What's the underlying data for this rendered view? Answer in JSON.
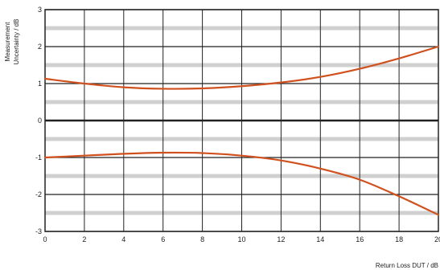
{
  "chart_data": {
    "type": "line",
    "title": "",
    "xlabel": "Return Loss DUT / dB",
    "ylabel_lines": [
      "Measurement",
      "Uncertainty / dB"
    ],
    "xlim": [
      0,
      20
    ],
    "ylim": [
      -3,
      3
    ],
    "x_ticks": [
      0,
      2,
      4,
      6,
      8,
      10,
      12,
      14,
      16,
      18,
      20
    ],
    "y_ticks": [
      3,
      2,
      1,
      0,
      -1,
      -2,
      -3
    ],
    "y_tick_labels": [
      "3",
      "2",
      "1",
      "0",
      "-1",
      "-2",
      "-3"
    ],
    "grid": true,
    "legend": "none",
    "colors": {
      "curve": "#d0501e",
      "grid": "#888888",
      "band": "#aaaaaa",
      "axis": "#222222"
    },
    "series": [
      {
        "x": [
          0,
          2,
          4,
          6,
          8,
          10,
          12,
          14,
          16,
          18,
          20
        ],
        "y": [
          1.13,
          1.0,
          0.9,
          0.86,
          0.87,
          0.93,
          1.03,
          1.18,
          1.4,
          1.68,
          2.0
        ]
      },
      {
        "x": [
          0,
          2,
          4,
          6,
          8,
          10,
          12,
          14,
          16,
          18,
          20
        ],
        "y": [
          -1.0,
          -0.95,
          -0.9,
          -0.87,
          -0.88,
          -0.95,
          -1.08,
          -1.3,
          -1.6,
          -2.05,
          -2.55
        ]
      }
    ]
  }
}
